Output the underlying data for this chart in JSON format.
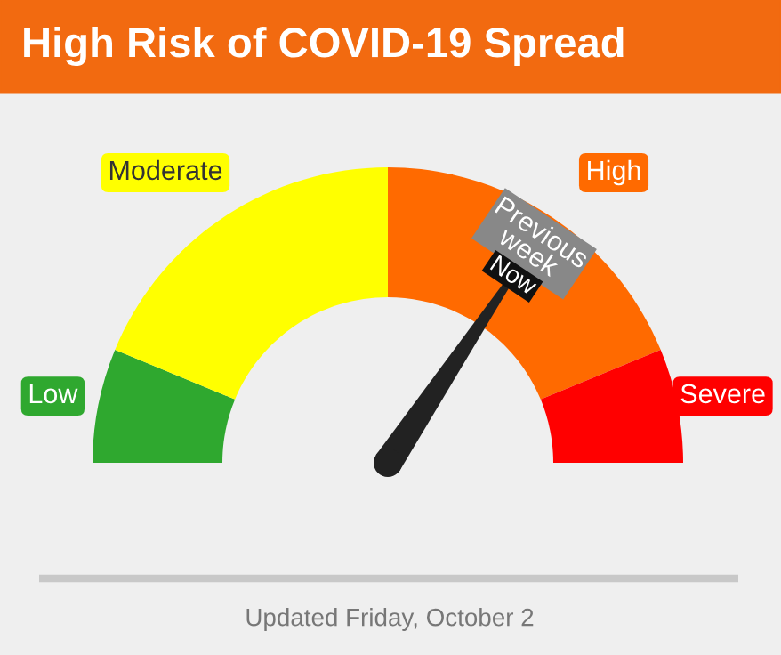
{
  "chart_data": {
    "type": "donut",
    "title": "High Risk of COVID-19 Spread",
    "categories": [
      "Low",
      "Moderate",
      "High",
      "Severe"
    ],
    "values": [
      12.5,
      37.5,
      37.5,
      12.5
    ],
    "colors": [
      "#2fa82f",
      "#ffff00",
      "#ff6a00",
      "#ff0000"
    ],
    "needle": "High",
    "annotations": [
      "Previous week",
      "Now",
      "Updated Friday, October 2"
    ]
  }
}
